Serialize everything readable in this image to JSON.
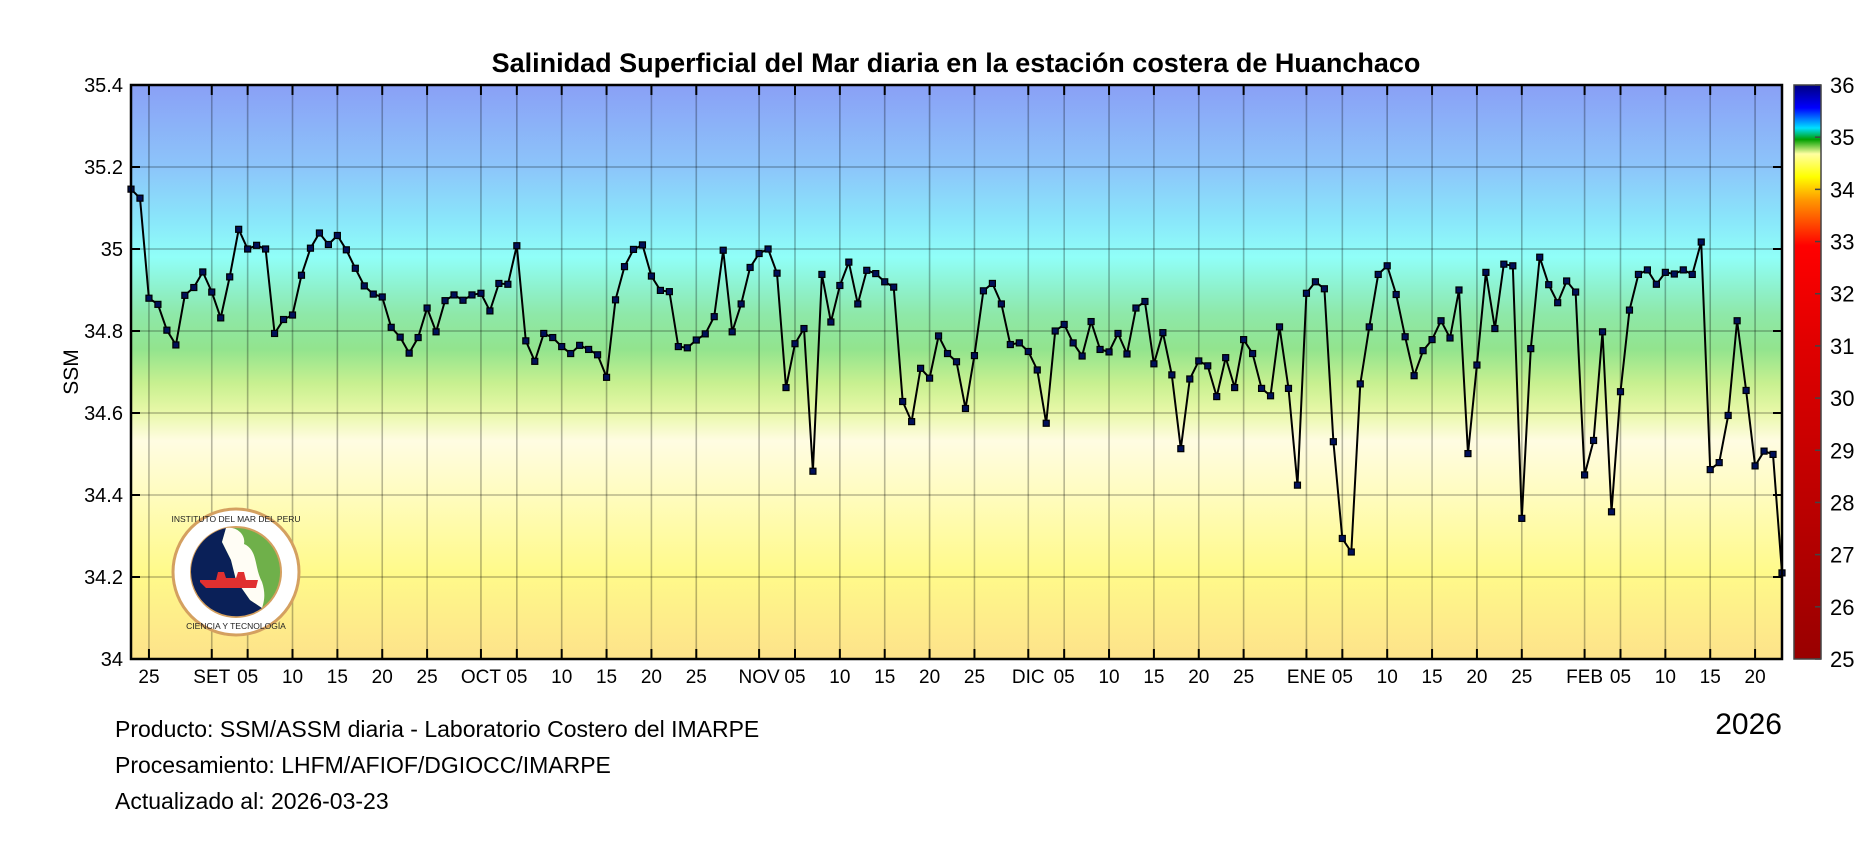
{
  "chart_data": {
    "type": "line",
    "title": "Salinidad Superficial del Mar diaria en la estación costera de Huanchaco",
    "xlabel": "",
    "ylabel": "SSM",
    "ylim": [
      34,
      35.4
    ],
    "y_ticks": [
      "34",
      "34.2",
      "34.4",
      "34.6",
      "34.8",
      "35",
      "35.2",
      "35.4"
    ],
    "xlim": [
      "2025-08-23",
      "2026-02-23"
    ],
    "x_ticks": [
      {
        "date": "2025-08-25",
        "label": "25"
      },
      {
        "date": "2025-09-01",
        "label": "SET"
      },
      {
        "date": "2025-09-05",
        "label": "05"
      },
      {
        "date": "2025-09-10",
        "label": "10"
      },
      {
        "date": "2025-09-15",
        "label": "15"
      },
      {
        "date": "2025-09-20",
        "label": "20"
      },
      {
        "date": "2025-09-25",
        "label": "25"
      },
      {
        "date": "2025-10-01",
        "label": "OCT"
      },
      {
        "date": "2025-10-05",
        "label": "05"
      },
      {
        "date": "2025-10-10",
        "label": "10"
      },
      {
        "date": "2025-10-15",
        "label": "15"
      },
      {
        "date": "2025-10-20",
        "label": "20"
      },
      {
        "date": "2025-10-25",
        "label": "25"
      },
      {
        "date": "2025-11-01",
        "label": "NOV"
      },
      {
        "date": "2025-11-05",
        "label": "05"
      },
      {
        "date": "2025-11-10",
        "label": "10"
      },
      {
        "date": "2025-11-15",
        "label": "15"
      },
      {
        "date": "2025-11-20",
        "label": "20"
      },
      {
        "date": "2025-11-25",
        "label": "25"
      },
      {
        "date": "2025-12-01",
        "label": "DIC"
      },
      {
        "date": "2025-12-05",
        "label": "05"
      },
      {
        "date": "2025-12-10",
        "label": "10"
      },
      {
        "date": "2025-12-15",
        "label": "15"
      },
      {
        "date": "2025-12-20",
        "label": "20"
      },
      {
        "date": "2025-12-25",
        "label": "25"
      },
      {
        "date": "2026-01-01",
        "label": "ENE"
      },
      {
        "date": "2026-01-05",
        "label": "05"
      },
      {
        "date": "2026-01-10",
        "label": "10"
      },
      {
        "date": "2026-01-15",
        "label": "15"
      },
      {
        "date": "2026-01-20",
        "label": "20"
      },
      {
        "date": "2026-01-25",
        "label": "25"
      },
      {
        "date": "2026-02-01",
        "label": "FEB"
      },
      {
        "date": "2026-02-05",
        "label": "05"
      },
      {
        "date": "2026-02-10",
        "label": "10"
      },
      {
        "date": "2026-02-15",
        "label": "15"
      },
      {
        "date": "2026-02-20",
        "label": "20"
      }
    ],
    "year_label": "2026",
    "grid": true,
    "line_color": "#000000",
    "marker_color": "#00105a",
    "x": [
      "2025-08-23",
      "2025-08-24",
      "2025-08-25",
      "2025-08-26",
      "2025-08-27",
      "2025-08-28",
      "2025-08-29",
      "2025-08-30",
      "2025-08-31",
      "2025-09-01",
      "2025-09-02",
      "2025-09-03",
      "2025-09-04",
      "2025-09-05",
      "2025-09-06",
      "2025-09-07",
      "2025-09-08",
      "2025-09-09",
      "2025-09-10",
      "2025-09-11",
      "2025-09-12",
      "2025-09-13",
      "2025-09-14",
      "2025-09-15",
      "2025-09-16",
      "2025-09-17",
      "2025-09-18",
      "2025-09-19",
      "2025-09-20",
      "2025-09-21",
      "2025-09-22",
      "2025-09-23",
      "2025-09-24",
      "2025-09-25",
      "2025-09-26",
      "2025-09-27",
      "2025-09-28",
      "2025-09-29",
      "2025-09-30",
      "2025-10-01",
      "2025-10-02",
      "2025-10-03",
      "2025-10-04",
      "2025-10-05",
      "2025-10-06",
      "2025-10-07",
      "2025-10-08",
      "2025-10-09",
      "2025-10-10",
      "2025-10-11",
      "2025-10-12",
      "2025-10-13",
      "2025-10-14",
      "2025-10-15",
      "2025-10-16",
      "2025-10-17",
      "2025-10-18",
      "2025-10-19",
      "2025-10-20",
      "2025-10-21",
      "2025-10-22",
      "2025-10-23",
      "2025-10-24",
      "2025-10-25",
      "2025-10-26",
      "2025-10-27",
      "2025-10-28",
      "2025-10-29",
      "2025-10-30",
      "2025-10-31",
      "2025-11-01",
      "2025-11-02",
      "2025-11-03",
      "2025-11-04",
      "2025-11-05",
      "2025-11-06",
      "2025-11-07",
      "2025-11-08",
      "2025-11-09",
      "2025-11-10",
      "2025-11-11",
      "2025-11-12",
      "2025-11-13",
      "2025-11-14",
      "2025-11-15",
      "2025-11-16",
      "2025-11-17",
      "2025-11-18",
      "2025-11-19",
      "2025-11-20",
      "2025-11-21",
      "2025-11-22",
      "2025-11-23",
      "2025-11-24",
      "2025-11-25",
      "2025-11-26",
      "2025-11-27",
      "2025-11-28",
      "2025-11-29",
      "2025-11-30",
      "2025-12-01",
      "2025-12-02",
      "2025-12-03",
      "2025-12-04",
      "2025-12-05",
      "2025-12-06",
      "2025-12-07",
      "2025-12-08",
      "2025-12-09",
      "2025-12-10",
      "2025-12-11",
      "2025-12-12",
      "2025-12-13",
      "2025-12-14",
      "2025-12-15",
      "2025-12-16",
      "2025-12-17",
      "2025-12-18",
      "2025-12-19",
      "2025-12-20",
      "2025-12-21",
      "2025-12-22",
      "2025-12-23",
      "2025-12-24",
      "2025-12-25",
      "2025-12-26",
      "2025-12-27",
      "2025-12-28",
      "2025-12-29",
      "2025-12-30",
      "2025-12-31",
      "2026-01-01",
      "2026-01-02",
      "2026-01-03",
      "2026-01-04",
      "2026-01-05",
      "2026-01-06",
      "2026-01-07",
      "2026-01-08",
      "2026-01-09",
      "2026-01-10",
      "2026-01-11",
      "2026-01-12",
      "2026-01-13",
      "2026-01-14",
      "2026-01-15",
      "2026-01-16",
      "2026-01-17",
      "2026-01-18",
      "2026-01-19",
      "2026-01-20",
      "2026-01-21",
      "2026-01-22",
      "2026-01-23",
      "2026-01-24",
      "2026-01-25",
      "2026-01-26",
      "2026-01-27",
      "2026-01-28",
      "2026-01-29",
      "2026-01-30",
      "2026-01-31",
      "2026-02-01",
      "2026-02-02",
      "2026-02-03",
      "2026-02-04",
      "2026-02-05",
      "2026-02-06",
      "2026-02-07",
      "2026-02-08",
      "2026-02-09",
      "2026-02-10",
      "2026-02-11",
      "2026-02-12",
      "2026-02-13",
      "2026-02-14",
      "2026-02-15",
      "2026-02-16",
      "2026-02-17",
      "2026-02-18",
      "2026-02-19",
      "2026-02-20",
      "2026-02-21",
      "2026-02-22",
      "2026-02-23"
    ],
    "values": [
      35.146,
      35.124,
      34.88,
      34.865,
      34.802,
      34.766,
      34.887,
      34.906,
      34.944,
      34.895,
      34.832,
      34.932,
      35.048,
      35.0,
      35.009,
      35.0,
      34.794,
      34.828,
      34.839,
      34.936,
      35.002,
      35.039,
      35.011,
      35.033,
      34.998,
      34.953,
      34.91,
      34.89,
      34.883,
      34.809,
      34.785,
      34.746,
      34.784,
      34.856,
      34.798,
      34.874,
      34.888,
      34.875,
      34.888,
      34.892,
      34.849,
      34.916,
      34.914,
      35.008,
      34.776,
      34.726,
      34.794,
      34.784,
      34.762,
      34.745,
      34.765,
      34.755,
      34.742,
      34.687,
      34.876,
      34.957,
      34.999,
      35.01,
      34.934,
      34.899,
      34.896,
      34.762,
      34.759,
      34.778,
      34.793,
      34.835,
      34.997,
      34.798,
      34.866,
      34.955,
      34.989,
      35.0,
      34.941,
      34.662,
      34.769,
      34.806,
      34.458,
      34.938,
      34.822,
      34.911,
      34.968,
      34.866,
      34.948,
      34.94,
      34.92,
      34.907,
      34.628,
      34.579,
      34.709,
      34.685,
      34.788,
      34.745,
      34.725,
      34.611,
      34.74,
      34.898,
      34.916,
      34.866,
      34.767,
      34.771,
      34.75,
      34.705,
      34.575,
      34.8,
      34.816,
      34.771,
      34.739,
      34.823,
      34.755,
      34.749,
      34.794,
      34.744,
      34.856,
      34.872,
      34.72,
      34.796,
      34.693,
      34.513,
      34.683,
      34.727,
      34.715,
      34.64,
      34.735,
      34.662,
      34.779,
      34.745,
      34.66,
      34.642,
      34.81,
      34.66,
      34.424,
      34.892,
      34.92,
      34.903,
      34.53,
      34.294,
      34.261,
      34.671,
      34.81,
      34.938,
      34.959,
      34.889,
      34.786,
      34.691,
      34.752,
      34.779,
      34.825,
      34.783,
      34.9,
      34.501,
      34.717,
      34.943,
      34.806,
      34.963,
      34.959,
      34.343,
      34.757,
      34.98,
      34.913,
      34.869,
      34.922,
      34.895,
      34.449,
      34.533,
      34.798,
      34.359,
      34.652,
      34.851,
      34.938,
      34.949,
      34.914,
      34.943,
      34.939,
      34.949,
      34.938,
      35.017,
      34.462,
      34.479,
      34.594,
      34.825,
      34.655,
      34.471,
      34.507,
      34.499,
      34.21
    ],
    "colorbar": {
      "ticks": [
        "25",
        "26",
        "27",
        "28",
        "29",
        "30",
        "31",
        "32",
        "33",
        "34",
        "35",
        "36"
      ],
      "range": [
        25,
        36
      ]
    }
  },
  "logo": {
    "text_top": "INSTITUTO DEL MAR DEL PERU",
    "text_bottom": "CIENCIA Y TECNOLOGÍA"
  },
  "footer": {
    "line1": "Producto: SSM/ASSM diaria - Laboratorio Costero del IMARPE",
    "line2": "Procesamiento: LHFM/AFIOF/DGIOCC/IMARPE",
    "line3": "Actualizado al: 2026-03-23"
  }
}
